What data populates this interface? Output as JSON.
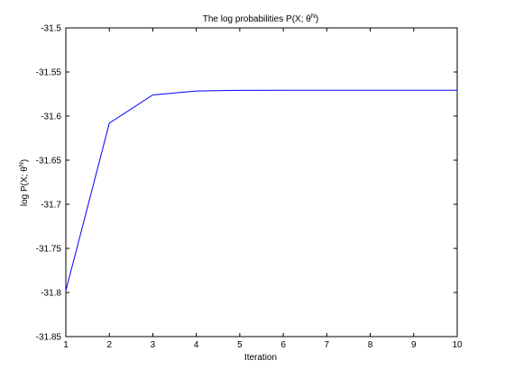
{
  "chart_data": {
    "type": "line",
    "title_prefix": "The log probabilities P(X;  θ",
    "title_superscript": "N",
    "title_suffix": ")",
    "xlabel": "Iteration",
    "ylabel_prefix": "log P(X; θ",
    "ylabel_superscript": "N",
    "ylabel_suffix": ")",
    "xlim": [
      1,
      10
    ],
    "ylim": [
      -31.85,
      -31.5
    ],
    "x_ticks": [
      1,
      2,
      3,
      4,
      5,
      6,
      7,
      8,
      9,
      10
    ],
    "x_tick_labels": [
      "1",
      "2",
      "3",
      "4",
      "5",
      "6",
      "7",
      "8",
      "9",
      "10"
    ],
    "y_ticks": [
      -31.5,
      -31.55,
      -31.6,
      -31.65,
      -31.7,
      -31.75,
      -31.8,
      -31.85
    ],
    "y_tick_labels": [
      "-31.5",
      "-31.55",
      "-31.6",
      "-31.65",
      "-31.7",
      "-31.75",
      "-31.8",
      "-31.85"
    ],
    "grid": false,
    "line_color": "#0000ff",
    "series": [
      {
        "x": [
          1,
          2,
          3,
          4,
          5,
          6,
          7,
          8,
          9,
          10
        ],
        "values": [
          -31.798,
          -31.608,
          -31.576,
          -31.5715,
          -31.5708,
          -31.5707,
          -31.5707,
          -31.5707,
          -31.5707,
          -31.5707
        ]
      }
    ]
  }
}
